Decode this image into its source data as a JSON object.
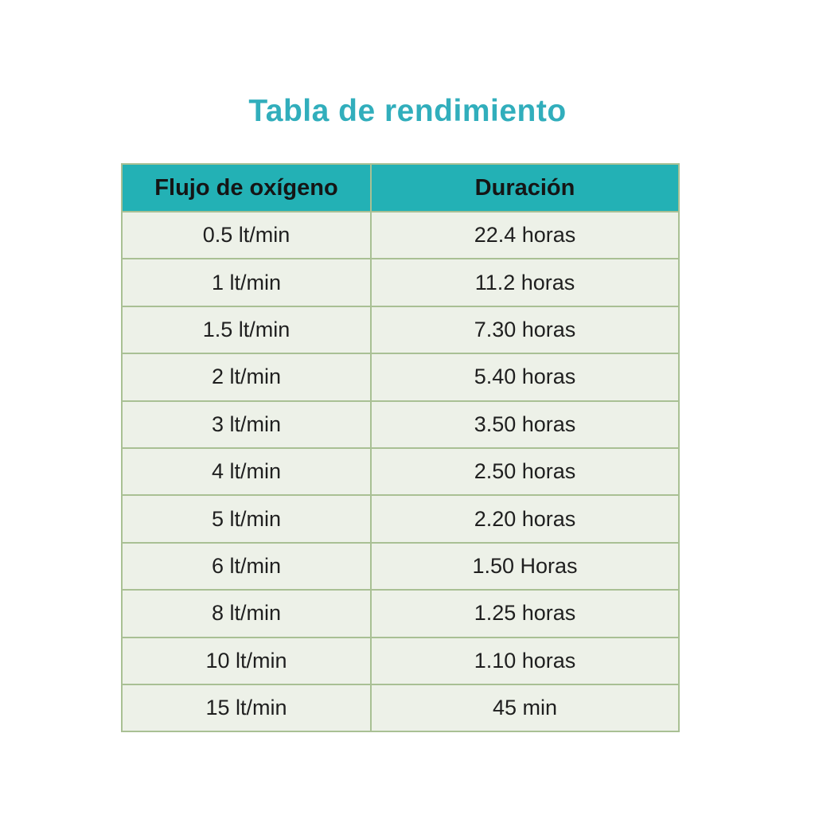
{
  "title": "Tabla de rendimiento",
  "colors": {
    "title_text": "#31AEBC",
    "header_bg": "#23B1B5",
    "header_text": "#151515",
    "row_bg": "#EDF1E8",
    "cell_text": "#1F1F1F",
    "border": "#A9C094"
  },
  "table": {
    "headers": [
      "Flujo de oxígeno",
      "Duración"
    ],
    "rows": [
      [
        "0.5 lt/min",
        "22.4 horas"
      ],
      [
        "1 lt/min",
        "11.2 horas"
      ],
      [
        "1.5 lt/min",
        "7.30 horas"
      ],
      [
        "2 lt/min",
        "5.40 horas"
      ],
      [
        "3 lt/min",
        "3.50 horas"
      ],
      [
        "4 lt/min",
        "2.50 horas"
      ],
      [
        "5 lt/min",
        "2.20 horas"
      ],
      [
        "6 lt/min",
        "1.50 Horas"
      ],
      [
        "8 lt/min",
        "1.25 horas"
      ],
      [
        "10 lt/min",
        "1.10 horas"
      ],
      [
        "15 lt/min",
        "45 min"
      ]
    ]
  },
  "chart_data": {
    "type": "table",
    "title": "Tabla de rendimiento",
    "columns": [
      "Flujo de oxígeno",
      "Duración"
    ],
    "rows": [
      [
        "0.5 lt/min",
        "22.4 horas"
      ],
      [
        "1 lt/min",
        "11.2 horas"
      ],
      [
        "1.5 lt/min",
        "7.30 horas"
      ],
      [
        "2 lt/min",
        "5.40 horas"
      ],
      [
        "3 lt/min",
        "3.50 horas"
      ],
      [
        "4 lt/min",
        "2.50 horas"
      ],
      [
        "5 lt/min",
        "2.20 horas"
      ],
      [
        "6 lt/min",
        "1.50 Horas"
      ],
      [
        "8 lt/min",
        "1.25 horas"
      ],
      [
        "10 lt/min",
        "1.10 horas"
      ],
      [
        "15 lt/min",
        "45 min"
      ]
    ]
  }
}
